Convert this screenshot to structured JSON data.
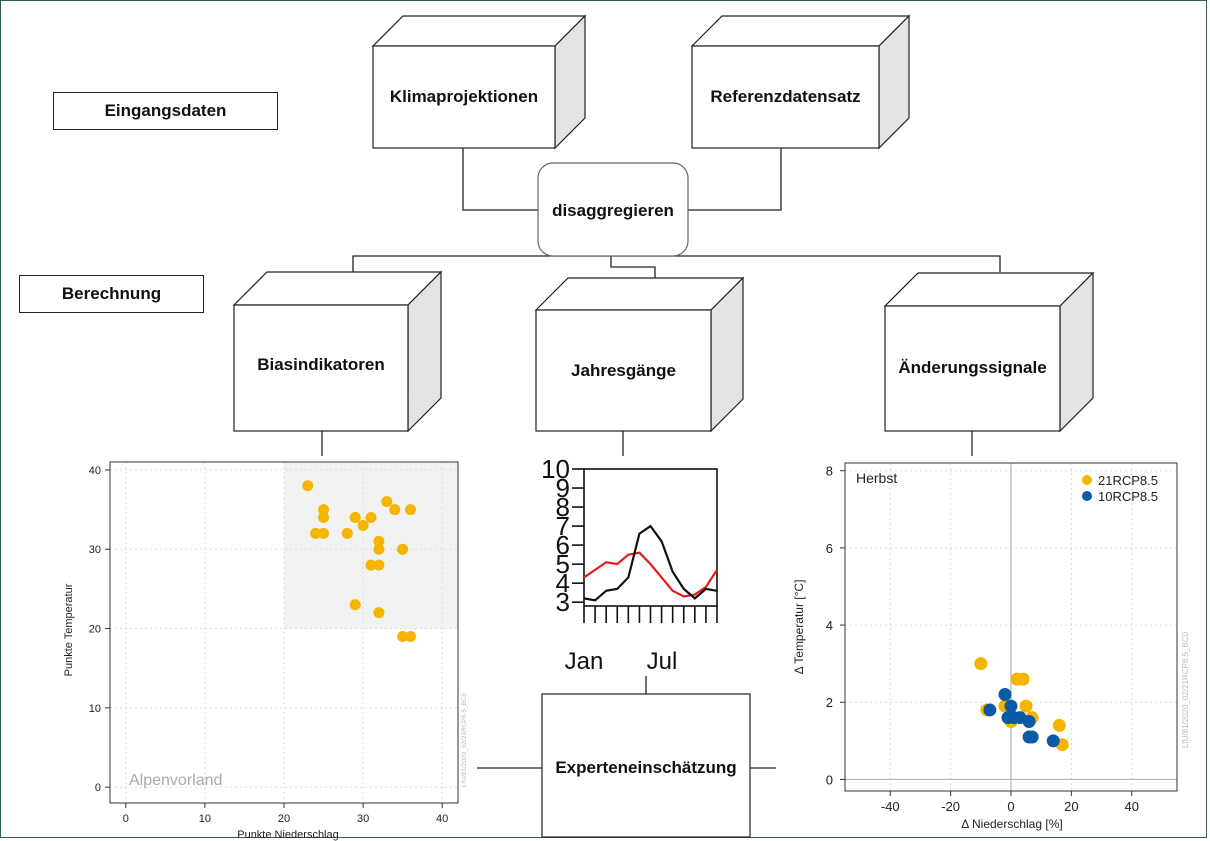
{
  "labels": {
    "eingangsdaten": "Eingangsdaten",
    "berechnung": "Berechnung",
    "klimaprojektionen": "Klimaprojektionen",
    "referenzdatensatz": "Referenzdatensatz",
    "disaggregieren": "disaggregieren",
    "biasindikatoren": "Biasindikatoren",
    "jahresgaenge": "Jahresgänge",
    "aenderungssignale": "Änderungssignale",
    "experteneinschaetzung": "Experteneinschätzung"
  },
  "chart_data": [
    {
      "type": "scatter",
      "xlabel": "Punkte Niederschlag",
      "ylabel": "Punkte Temperatur",
      "xlim": [
        -2,
        42
      ],
      "ylim": [
        -2,
        41
      ],
      "xticks": [
        0,
        10,
        20,
        30,
        40
      ],
      "yticks": [
        0,
        10,
        20,
        30,
        40
      ],
      "region_label": "Alpenvorland",
      "watermark": "LfU/81/2020_02/21RCP8.5_BC0",
      "highlight_region": {
        "x": [
          20,
          42
        ],
        "y": [
          20,
          41
        ]
      },
      "grid": true,
      "colors": {
        "points": "#f5b400",
        "highlight": "#f2f2f2"
      },
      "points": [
        [
          23,
          38
        ],
        [
          24,
          32
        ],
        [
          25,
          35
        ],
        [
          25,
          34
        ],
        [
          25,
          32
        ],
        [
          28,
          32
        ],
        [
          29,
          34
        ],
        [
          30,
          33
        ],
        [
          31,
          34
        ],
        [
          31,
          28
        ],
        [
          32,
          31
        ],
        [
          32,
          30
        ],
        [
          32,
          28
        ],
        [
          33,
          36
        ],
        [
          34,
          35
        ],
        [
          35,
          30
        ],
        [
          36,
          35
        ],
        [
          29,
          23
        ],
        [
          32,
          22
        ],
        [
          35,
          19
        ],
        [
          36,
          19
        ]
      ]
    },
    {
      "type": "line",
      "x_tick_labels": [
        "Jan",
        "Jul"
      ],
      "yticks": [
        "10",
        "9",
        "8",
        "7",
        "6",
        "5",
        "4",
        "3"
      ],
      "ylim": [
        2.8,
        10
      ],
      "colors": {
        "series_a": "#e41a1c",
        "series_b": "#111111"
      },
      "series": [
        {
          "values": [
            4.3,
            4.7,
            5.1,
            5.0,
            5.5,
            5.6,
            5.0,
            4.3,
            3.6,
            3.3,
            3.4,
            3.8,
            4.7
          ]
        },
        {
          "values": [
            3.2,
            3.1,
            3.6,
            3.7,
            4.3,
            6.6,
            7.0,
            6.2,
            4.6,
            3.7,
            3.2,
            3.7,
            3.6
          ]
        }
      ]
    },
    {
      "type": "scatter",
      "title": "Herbst",
      "xlabel": "Δ Niederschlag [%]",
      "ylabel": "Δ Temperatur [°C]",
      "xlim": [
        -55,
        55
      ],
      "ylim": [
        -0.3,
        8.2
      ],
      "xticks": [
        -40,
        -20,
        0,
        20,
        40
      ],
      "yticks": [
        0,
        2,
        4,
        6,
        8
      ],
      "watermark": "LfU/81/2020_02/21RCP8.5_BC0",
      "grid": true,
      "legend_position": "top-right",
      "series": [
        {
          "name": "21RCP8.5",
          "color": "#f5b400",
          "points": [
            [
              -10,
              3.0
            ],
            [
              -8,
              1.8
            ],
            [
              2,
              2.6
            ],
            [
              4,
              2.6
            ],
            [
              -2,
              1.9
            ],
            [
              5,
              1.9
            ],
            [
              16,
              1.4
            ],
            [
              17,
              0.9
            ],
            [
              7,
              1.6
            ],
            [
              0,
              1.5
            ]
          ]
        },
        {
          "name": "10RCP8.5",
          "color": "#0b5aa6",
          "points": [
            [
              -2,
              2.2
            ],
            [
              -7,
              1.8
            ],
            [
              0,
              1.9
            ],
            [
              1,
              1.6
            ],
            [
              3,
              1.6
            ],
            [
              6,
              1.5
            ],
            [
              6,
              1.1
            ],
            [
              7,
              1.1
            ],
            [
              14,
              1.0
            ],
            [
              -1,
              1.6
            ]
          ]
        }
      ]
    }
  ]
}
